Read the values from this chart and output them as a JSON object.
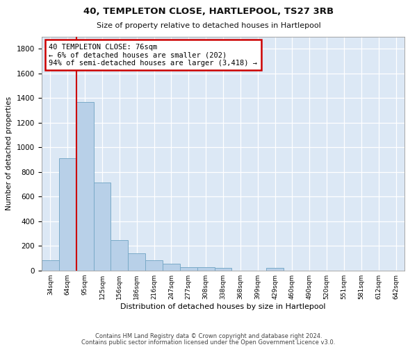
{
  "title1": "40, TEMPLETON CLOSE, HARTLEPOOL, TS27 3RB",
  "title2": "Size of property relative to detached houses in Hartlepool",
  "xlabel": "Distribution of detached houses by size in Hartlepool",
  "ylabel": "Number of detached properties",
  "bar_labels": [
    "34sqm",
    "64sqm",
    "95sqm",
    "125sqm",
    "156sqm",
    "186sqm",
    "216sqm",
    "247sqm",
    "277sqm",
    "308sqm",
    "338sqm",
    "368sqm",
    "399sqm",
    "429sqm",
    "460sqm",
    "490sqm",
    "520sqm",
    "551sqm",
    "581sqm",
    "612sqm",
    "642sqm"
  ],
  "bar_values": [
    85,
    910,
    1370,
    715,
    250,
    140,
    85,
    55,
    30,
    30,
    20,
    0,
    0,
    20,
    0,
    0,
    0,
    0,
    0,
    0,
    0
  ],
  "bar_color": "#b8d0e8",
  "bar_edge_color": "#7aaac8",
  "red_line_x": 1.5,
  "annotation_text": "40 TEMPLETON CLOSE: 76sqm\n← 6% of detached houses are smaller (202)\n94% of semi-detached houses are larger (3,418) →",
  "annotation_box_color": "#ffffff",
  "annotation_border_color": "#cc0000",
  "ylim": [
    0,
    1900
  ],
  "yticks": [
    0,
    200,
    400,
    600,
    800,
    1000,
    1200,
    1400,
    1600,
    1800
  ],
  "footer1": "Contains HM Land Registry data © Crown copyright and database right 2024.",
  "footer2": "Contains public sector information licensed under the Open Government Licence v3.0.",
  "plot_bg_color": "#dce8f5"
}
